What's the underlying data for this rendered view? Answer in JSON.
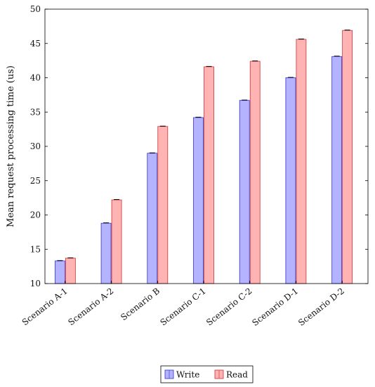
{
  "chart_data": {
    "type": "bar",
    "ylabel": "Mean request processing time (us)",
    "ylim": [
      10,
      50
    ],
    "yticks": [
      10,
      15,
      20,
      25,
      30,
      35,
      40,
      45,
      50
    ],
    "categories": [
      "Scenario A-1",
      "Scenario A-2",
      "Scenario B",
      "Scenario C-1",
      "Scenario C-2",
      "Scenario D-1",
      "Scenario D-2"
    ],
    "series": [
      {
        "name": "Write",
        "color": "#b3b3ff",
        "stroke": "#3333cc",
        "values": [
          13.3,
          18.8,
          29.0,
          34.2,
          36.7,
          40.0,
          43.1
        ]
      },
      {
        "name": "Read",
        "color": "#ffb3b3",
        "stroke": "#cc3333",
        "values": [
          13.7,
          22.2,
          32.9,
          41.6,
          42.4,
          45.6,
          46.9
        ]
      }
    ],
    "legend": "bottom-center",
    "grid": false
  }
}
